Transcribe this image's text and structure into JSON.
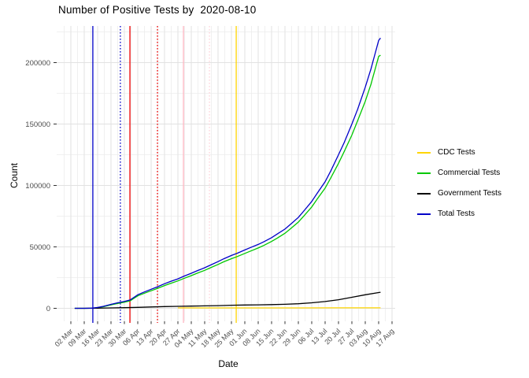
{
  "title": "Number of Positive Tests by  2020-08-10",
  "axes": {
    "x_label": "Date",
    "y_label": "Count",
    "x_tick_labels": [
      "02 Mar",
      "09 Mar",
      "16 Mar",
      "23 Mar",
      "30 Mar",
      "06 Apr",
      "13 Apr",
      "20 Apr",
      "27 Apr",
      "04 May",
      "11 May",
      "18 May",
      "25 May",
      "01 Jun",
      "08 Jun",
      "15 Jun",
      "22 Jun",
      "29 Jun",
      "06 Jul",
      "13 Jul",
      "20 Jul",
      "27 Jul",
      "03 Aug",
      "10 Aug",
      "17 Aug"
    ],
    "y_tick_labels": [
      "0",
      "50000",
      "100000",
      "150000",
      "200000"
    ],
    "y_tick_values": [
      0,
      50000,
      100000,
      150000,
      200000
    ]
  },
  "legend": {
    "items": [
      {
        "label": "CDC Tests",
        "color": "#FFD500"
      },
      {
        "label": "Commercial Tests",
        "color": "#00C800"
      },
      {
        "label": "Government Tests",
        "color": "#000000"
      },
      {
        "label": "Total Tests",
        "color": "#0000C8"
      }
    ]
  },
  "colors": {
    "grid_major": "#E2E2E2",
    "grid_minor": "#ECECEC",
    "tick": "#333333",
    "tick_text": "#4D4D4D"
  },
  "chart_data": {
    "type": "line",
    "title": "Number of Positive Tests by  2020-08-10",
    "xlabel": "Date",
    "ylabel": "Count",
    "x_unit": "days since 2020-03-02 (tick labels are Mondays, weekly)",
    "ylim": [
      0,
      225000
    ],
    "grid": true,
    "legend_position": "right",
    "series": [
      {
        "name": "CDC Tests",
        "color": "#FFD500",
        "style": "solid",
        "points": [
          [
            56,
            300
          ],
          [
            84,
            300
          ],
          [
            112,
            350
          ],
          [
            140,
            380
          ],
          [
            161,
            400
          ],
          [
            162,
            400
          ]
        ]
      },
      {
        "name": "Commercial Tests",
        "color": "#00C800",
        "style": "solid",
        "points": [
          [
            2,
            0
          ],
          [
            7,
            0
          ],
          [
            11,
            50
          ],
          [
            14,
            550
          ],
          [
            17,
            1300
          ],
          [
            21,
            2800
          ],
          [
            24,
            3800
          ],
          [
            28,
            5000
          ],
          [
            31,
            6100
          ],
          [
            35,
            10100
          ],
          [
            38,
            12000
          ],
          [
            42,
            14300
          ],
          [
            45,
            16000
          ],
          [
            49,
            18500
          ],
          [
            52,
            20200
          ],
          [
            56,
            22300
          ],
          [
            59,
            24200
          ],
          [
            63,
            26600
          ],
          [
            66,
            28500
          ],
          [
            70,
            30900
          ],
          [
            73,
            33000
          ],
          [
            77,
            35700
          ],
          [
            80,
            37900
          ],
          [
            84,
            40400
          ],
          [
            87,
            42100
          ],
          [
            91,
            44700
          ],
          [
            94,
            46600
          ],
          [
            98,
            49100
          ],
          [
            101,
            51200
          ],
          [
            105,
            54400
          ],
          [
            108,
            57200
          ],
          [
            112,
            61100
          ],
          [
            115,
            64900
          ],
          [
            119,
            70200
          ],
          [
            122,
            75400
          ],
          [
            126,
            82500
          ],
          [
            129,
            89200
          ],
          [
            133,
            97800
          ],
          [
            136,
            106300
          ],
          [
            140,
            118000
          ],
          [
            143,
            127700
          ],
          [
            147,
            141000
          ],
          [
            150,
            152700
          ],
          [
            154,
            168500
          ],
          [
            157,
            182500
          ],
          [
            161,
            205000
          ],
          [
            162,
            206000
          ]
        ]
      },
      {
        "name": "Government Tests",
        "color": "#000000",
        "style": "solid",
        "points": [
          [
            2,
            0
          ],
          [
            7,
            0
          ],
          [
            14,
            100
          ],
          [
            21,
            300
          ],
          [
            28,
            500
          ],
          [
            35,
            800
          ],
          [
            42,
            1100
          ],
          [
            49,
            1400
          ],
          [
            56,
            1600
          ],
          [
            63,
            1800
          ],
          [
            70,
            2000
          ],
          [
            77,
            2200
          ],
          [
            84,
            2500
          ],
          [
            91,
            2700
          ],
          [
            98,
            2800
          ],
          [
            105,
            3000
          ],
          [
            112,
            3300
          ],
          [
            119,
            3700
          ],
          [
            126,
            4500
          ],
          [
            133,
            5500
          ],
          [
            140,
            7000
          ],
          [
            147,
            9000
          ],
          [
            154,
            11000
          ],
          [
            161,
            12800
          ],
          [
            162,
            13100
          ]
        ]
      },
      {
        "name": "Total Tests",
        "color": "#0000C8",
        "style": "solid",
        "points": [
          [
            2,
            0
          ],
          [
            7,
            0
          ],
          [
            11,
            100
          ],
          [
            14,
            700
          ],
          [
            17,
            1600
          ],
          [
            21,
            3200
          ],
          [
            24,
            4300
          ],
          [
            28,
            5600
          ],
          [
            31,
            6800
          ],
          [
            35,
            11000
          ],
          [
            38,
            13000
          ],
          [
            42,
            15500
          ],
          [
            45,
            17300
          ],
          [
            49,
            20000
          ],
          [
            52,
            21800
          ],
          [
            56,
            24000
          ],
          [
            59,
            26000
          ],
          [
            63,
            28500
          ],
          [
            66,
            30500
          ],
          [
            70,
            33000
          ],
          [
            73,
            35200
          ],
          [
            77,
            38000
          ],
          [
            80,
            40300
          ],
          [
            84,
            43000
          ],
          [
            87,
            44800
          ],
          [
            91,
            47500
          ],
          [
            94,
            49500
          ],
          [
            98,
            52000
          ],
          [
            101,
            54200
          ],
          [
            105,
            57500
          ],
          [
            108,
            60500
          ],
          [
            112,
            64500
          ],
          [
            115,
            68500
          ],
          [
            119,
            74000
          ],
          [
            122,
            79500
          ],
          [
            126,
            87000
          ],
          [
            129,
            94000
          ],
          [
            133,
            103000
          ],
          [
            136,
            112000
          ],
          [
            140,
            125000
          ],
          [
            143,
            135000
          ],
          [
            147,
            150000
          ],
          [
            150,
            162000
          ],
          [
            154,
            180000
          ],
          [
            157,
            195000
          ],
          [
            161,
            218000
          ],
          [
            162,
            220000
          ]
        ]
      }
    ],
    "vlines": [
      {
        "x_day": 11.5,
        "date": "2020-03-13",
        "color": "#0000C8",
        "style": "solid"
      },
      {
        "x_day": 25.9,
        "date": "2020-03-27",
        "color": "#0000C8",
        "style": "dotted"
      },
      {
        "x_day": 30.9,
        "date": "2020-04-01",
        "color": "#EE0000",
        "style": "solid"
      },
      {
        "x_day": 45.3,
        "date": "2020-04-15",
        "color": "#EE0000",
        "style": "dotted"
      },
      {
        "x_day": 58.9,
        "date": "2020-04-29",
        "color": "#FFB6C1",
        "style": "solid"
      },
      {
        "x_day": 72.5,
        "date": "2020-05-13",
        "color": "#FFD5DB",
        "style": "dotted"
      },
      {
        "x_day": 86.5,
        "date": "2020-05-27",
        "color": "#FFD500",
        "style": "solid"
      }
    ]
  }
}
